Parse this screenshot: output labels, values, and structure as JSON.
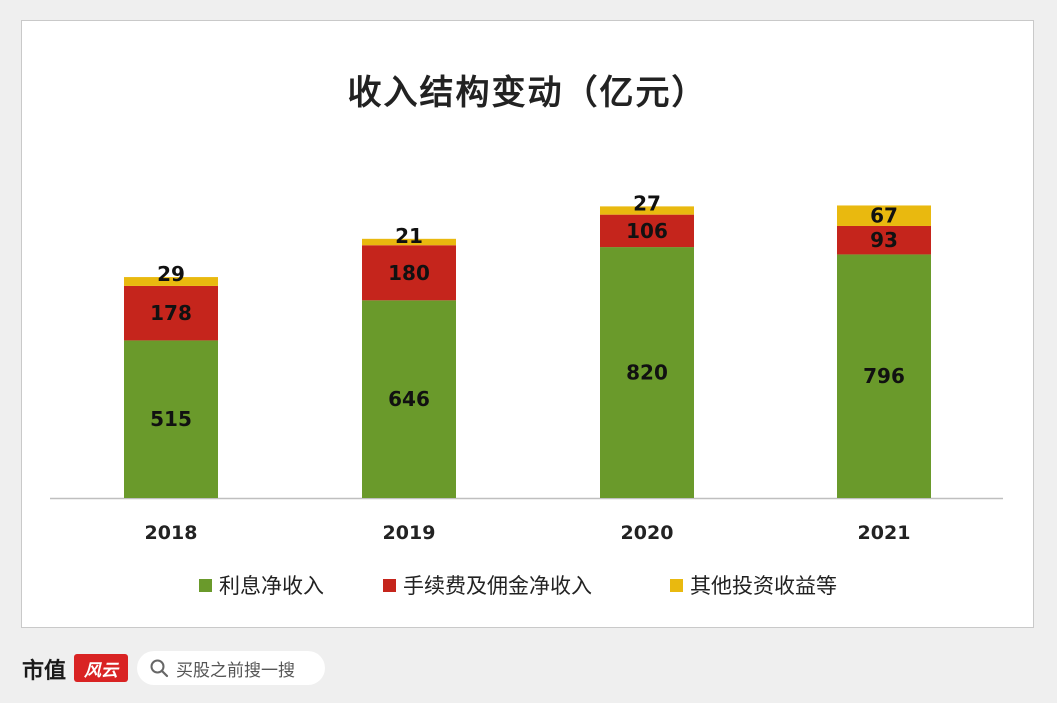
{
  "chart_data": {
    "type": "bar",
    "stacked": true,
    "title": "收入结构变动（亿元）",
    "categories": [
      "2018",
      "2019",
      "2020",
      "2021"
    ],
    "series": [
      {
        "name": "利息净收入",
        "color": "#6a9a2b",
        "values": [
          515,
          646,
          820,
          796
        ]
      },
      {
        "name": "手续费及佣金净收入",
        "color": "#c5251c",
        "values": [
          178,
          180,
          106,
          93
        ]
      },
      {
        "name": "其他投资收益等",
        "color": "#e9b90f",
        "values": [
          29,
          21,
          27,
          67
        ]
      }
    ],
    "ylim": [
      0,
      1000
    ],
    "grid": false,
    "legend_position": "bottom"
  },
  "footer": {
    "brand_name": "市值",
    "brand_logo": "风云",
    "search_placeholder": "买股之前搜一搜"
  }
}
